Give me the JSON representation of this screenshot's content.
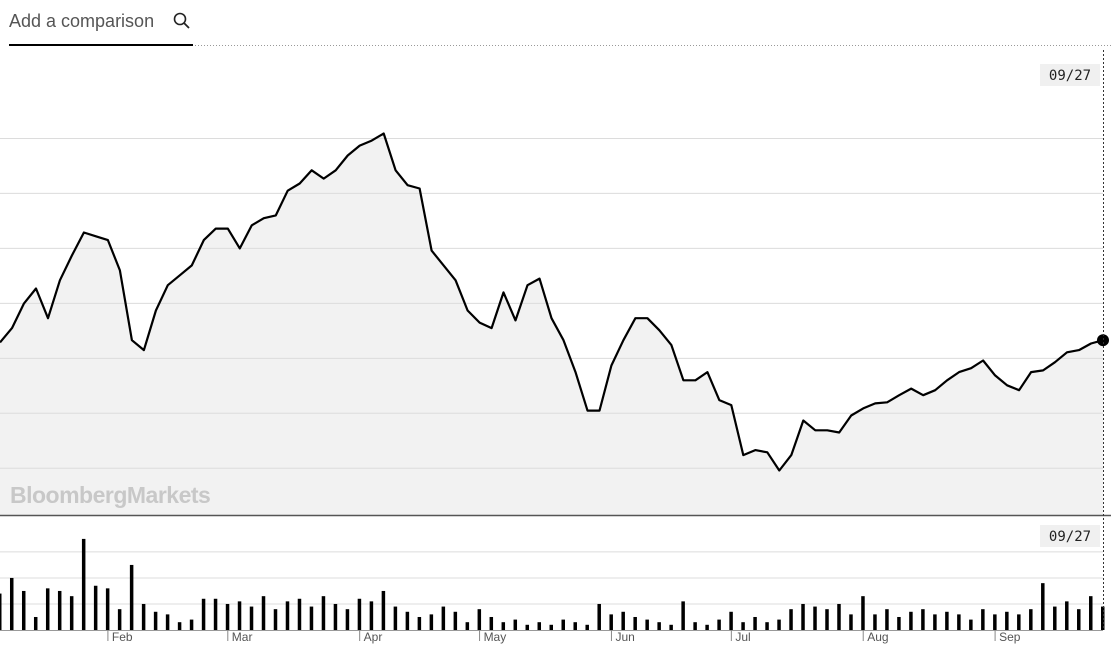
{
  "search": {
    "placeholder": "Add a comparison"
  },
  "watermark": "BloombergMarkets",
  "chart_data": {
    "type": "line",
    "cursor_label": "09/27",
    "categories": [
      null,
      null,
      null,
      null,
      null,
      null,
      null,
      null,
      null,
      "Feb",
      null,
      null,
      null,
      null,
      null,
      null,
      null,
      null,
      null,
      "Mar",
      null,
      null,
      null,
      null,
      null,
      null,
      null,
      null,
      null,
      null,
      "Apr",
      null,
      null,
      null,
      null,
      null,
      null,
      null,
      null,
      null,
      "May",
      null,
      null,
      null,
      null,
      null,
      null,
      null,
      null,
      null,
      null,
      "Jun",
      null,
      null,
      null,
      null,
      null,
      null,
      null,
      null,
      null,
      "Jul",
      null,
      null,
      null,
      null,
      null,
      null,
      null,
      null,
      null,
      null,
      "Aug",
      null,
      null,
      null,
      null,
      null,
      null,
      null,
      null,
      null,
      null,
      "Sep",
      null,
      null,
      null,
      null,
      null,
      null,
      null,
      null,
      null
    ],
    "series": [
      {
        "type": "line",
        "color": "#000000",
        "fill": "#f2f2f2",
        "values": [
          3.29,
          3.55,
          4.0,
          4.27,
          3.73,
          4.42,
          4.87,
          5.29,
          5.22,
          5.15,
          4.6,
          3.33,
          3.15,
          3.87,
          4.33,
          4.51,
          4.69,
          5.15,
          5.36,
          5.36,
          5.0,
          5.42,
          5.55,
          5.6,
          6.05,
          6.18,
          6.42,
          6.27,
          6.42,
          6.69,
          6.87,
          6.96,
          7.09,
          6.42,
          6.15,
          6.09,
          4.96,
          4.69,
          4.42,
          3.87,
          3.65,
          3.55,
          4.2,
          3.69,
          4.33,
          4.45,
          3.73,
          3.33,
          2.75,
          2.05,
          2.05,
          2.87,
          3.33,
          3.73,
          3.73,
          3.51,
          3.24,
          2.6,
          2.6,
          2.75,
          2.24,
          2.15,
          1.24,
          1.33,
          1.29,
          0.96,
          1.24,
          1.87,
          1.69,
          1.69,
          1.65,
          1.96,
          2.09,
          2.18,
          2.2,
          2.33,
          2.45,
          2.33,
          2.42,
          2.6,
          2.75,
          2.82,
          2.96,
          2.69,
          2.51,
          2.42,
          2.75,
          2.78,
          2.93,
          3.11,
          3.15,
          3.27,
          3.33
        ]
      },
      {
        "type": "bar",
        "axis": "y2",
        "color": "#000000",
        "values": [
          1.4,
          2.0,
          1.5,
          0.5,
          1.6,
          1.5,
          1.3,
          3.5,
          1.7,
          1.6,
          0.8,
          2.5,
          1.0,
          0.7,
          0.6,
          0.3,
          0.4,
          1.2,
          1.2,
          1.0,
          1.1,
          0.9,
          1.3,
          0.8,
          1.1,
          1.2,
          0.9,
          1.3,
          1.0,
          0.8,
          1.2,
          1.1,
          1.5,
          0.9,
          0.7,
          0.5,
          0.6,
          0.9,
          0.7,
          0.3,
          0.8,
          0.5,
          0.3,
          0.4,
          0.2,
          0.3,
          0.2,
          0.4,
          0.3,
          0.2,
          1.0,
          0.6,
          0.7,
          0.5,
          0.4,
          0.3,
          0.2,
          1.1,
          0.3,
          0.2,
          0.4,
          0.7,
          0.3,
          0.5,
          0.3,
          0.4,
          0.8,
          1.0,
          0.9,
          0.8,
          1.0,
          0.6,
          1.3,
          0.6,
          0.8,
          0.5,
          0.7,
          0.8,
          0.6,
          0.7,
          0.6,
          0.4,
          0.8,
          0.6,
          0.7,
          0.6,
          0.8,
          1.8,
          0.9,
          1.1,
          0.8,
          1.3,
          0.9
        ]
      }
    ],
    "ylim": [
      0.15,
      8.7
    ],
    "yticks": [
      1,
      2,
      3,
      4,
      5,
      6,
      7
    ],
    "y2lim": [
      0,
      4.38
    ],
    "y2ticks": [
      1,
      2,
      3
    ],
    "grid": true
  }
}
